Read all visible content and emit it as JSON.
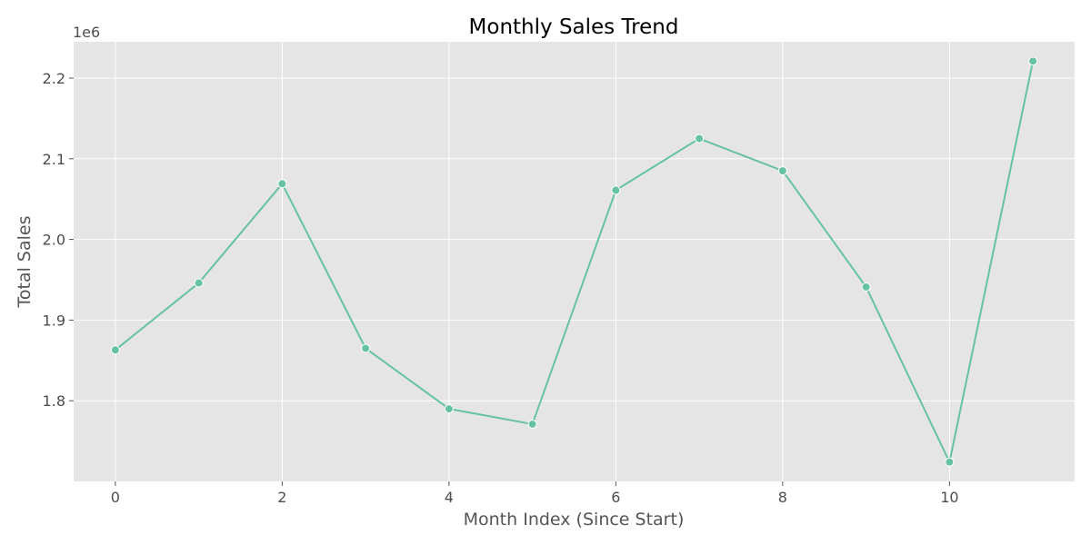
{
  "chart_data": {
    "type": "line",
    "title": "Monthly Sales Trend",
    "xlabel": "Month Index (Since Start)",
    "ylabel": "Total Sales",
    "y_offset_label": "1e6",
    "xlim": [
      -0.5,
      11.5
    ],
    "ylim": [
      1.7,
      2.245
    ],
    "x_ticks": [
      0,
      2,
      4,
      6,
      8,
      10
    ],
    "x_tick_labels": [
      "0",
      "2",
      "4",
      "6",
      "8",
      "10"
    ],
    "y_ticks": [
      1.8,
      1.9,
      2.0,
      2.1,
      2.2
    ],
    "y_tick_labels": [
      "1.8",
      "1.9",
      "2.0",
      "2.1",
      "2.2"
    ],
    "grid": true,
    "series": [
      {
        "color": "#66c2a5",
        "x": [
          0,
          1,
          2,
          3,
          4,
          5,
          6,
          7,
          8,
          9,
          10,
          11
        ],
        "y": [
          1.863,
          1.946,
          2.069,
          1.865,
          1.79,
          1.771,
          2.061,
          2.125,
          2.085,
          1.941,
          1.724,
          2.221
        ]
      }
    ]
  },
  "colors": {
    "plot_background": "#e5e5e5",
    "grid": "#ffffff",
    "line": "#66c2a5"
  }
}
